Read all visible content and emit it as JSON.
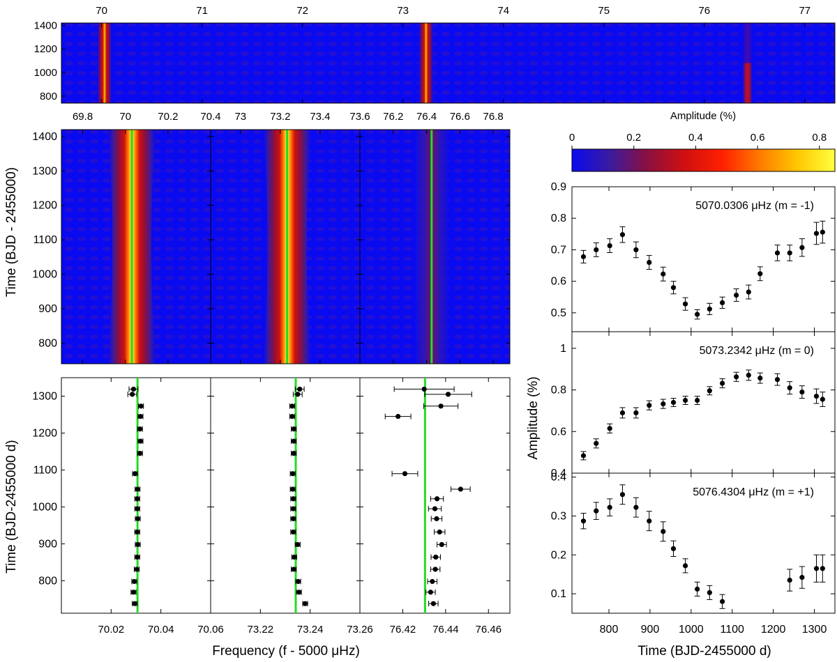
{
  "colors": {
    "background_blue": "#1010e8",
    "spectrum_ramp": [
      "#0a0af0",
      "#3a1aa0",
      "#8a1040",
      "#d01010",
      "#ff2000",
      "#ff7a00",
      "#ffc800",
      "#ffff40"
    ],
    "reference_line": "#22dd22",
    "points": "#000000"
  },
  "chart_data": [
    {
      "id": "top_strip",
      "type": "heatmap",
      "description_xlim": [
        69.6,
        77.3
      ],
      "x_ticks": [
        "70",
        "71",
        "72",
        "73",
        "74",
        "75",
        "76",
        "77"
      ],
      "x_tick_values": [
        70,
        71,
        72,
        73,
        74,
        75,
        76,
        77
      ],
      "y_ticks": [
        "1400",
        "1200",
        "1000",
        "800"
      ],
      "y_tick_values": [
        1400,
        1200,
        1000,
        800
      ],
      "ylim": [
        740,
        1420
      ],
      "peaks": [
        {
          "freq": 70.03,
          "amp_early": 0.7,
          "amp_late": 0.75
        },
        {
          "freq": 73.23,
          "amp_early": 0.7,
          "amp_late": 0.8
        },
        {
          "freq": 76.43,
          "amp_early": 0.3,
          "amp_late": 0.15
        }
      ]
    },
    {
      "id": "zoom_heatmaps",
      "type": "heatmap",
      "ylabel": "Time (BJD - 2455000)",
      "y_ticks": [
        "1400",
        "1300",
        "1200",
        "1100",
        "1000",
        "900",
        "800"
      ],
      "y_tick_values": [
        1400,
        1300,
        1200,
        1100,
        1000,
        900,
        800
      ],
      "ylim": [
        740,
        1420
      ],
      "panels": [
        {
          "xlim": [
            69.7,
            70.4
          ],
          "x_ticks": [
            "69.8",
            "70",
            "70.2",
            "70.4"
          ],
          "x_tick_values": [
            69.8,
            70.0,
            70.2,
            70.4
          ],
          "center": 70.0306
        },
        {
          "xlim": [
            72.85,
            73.6
          ],
          "x_ticks": [
            "73",
            "73.2",
            "73.4",
            "73.6"
          ],
          "x_tick_values": [
            73.0,
            73.2,
            73.4,
            73.6
          ],
          "center": 73.2342
        },
        {
          "xlim": [
            76.0,
            76.9
          ],
          "x_ticks": [
            "76.2",
            "76.4",
            "76.6",
            "76.8"
          ],
          "x_tick_values": [
            76.2,
            76.4,
            76.6,
            76.8
          ],
          "center": 76.4304
        }
      ]
    },
    {
      "id": "frequency_vs_time",
      "type": "scatter",
      "xlabel": "Frequency (f - 5000 μHz)",
      "ylabel": "Time (BJD-2455000 d)",
      "y_ticks": [
        "1300",
        "1200",
        "1100",
        "1000",
        "900",
        "800"
      ],
      "y_tick_values": [
        1300,
        1200,
        1100,
        1000,
        900,
        800
      ],
      "ylim": [
        712,
        1350
      ],
      "panels": [
        {
          "xlim": [
            70.0,
            70.06
          ],
          "x_ticks": [
            "70.02",
            "70.04"
          ],
          "x_tick_values": [
            70.02,
            70.04
          ],
          "edge_tick": "70.06",
          "ref": 70.0306,
          "series": [
            {
              "t": 1319,
              "f": 70.029,
              "e": 0.0018
            },
            {
              "t": 1305,
              "f": 70.0285,
              "e": 0.0018
            },
            {
              "t": 1273,
              "f": 70.032,
              "e": 0.001
            },
            {
              "t": 1245,
              "f": 70.0318,
              "e": 0.001
            },
            {
              "t": 1211,
              "f": 70.0316,
              "e": 0.001
            },
            {
              "t": 1178,
              "f": 70.0318,
              "e": 0.001
            },
            {
              "t": 1145,
              "f": 70.0316,
              "e": 0.001
            },
            {
              "t": 1090,
              "f": 70.0296,
              "e": 0.001
            },
            {
              "t": 1048,
              "f": 70.0306,
              "e": 0.001
            },
            {
              "t": 1022,
              "f": 70.0305,
              "e": 0.001
            },
            {
              "t": 995,
              "f": 70.0305,
              "e": 0.001
            },
            {
              "t": 968,
              "f": 70.0307,
              "e": 0.001
            },
            {
              "t": 932,
              "f": 70.0305,
              "e": 0.001
            },
            {
              "t": 898,
              "f": 70.0307,
              "e": 0.001
            },
            {
              "t": 864,
              "f": 70.0305,
              "e": 0.001
            },
            {
              "t": 831,
              "f": 70.0303,
              "e": 0.001
            },
            {
              "t": 798,
              "f": 70.0293,
              "e": 0.001
            },
            {
              "t": 769,
              "f": 70.029,
              "e": 0.001
            },
            {
              "t": 738,
              "f": 70.0295,
              "e": 0.001
            }
          ]
        },
        {
          "xlim": [
            73.2,
            73.26
          ],
          "x_ticks": [
            "73.22",
            "73.24",
            "73.26"
          ],
          "x_tick_values": [
            73.22,
            73.24,
            73.26
          ],
          "edge_tick": "",
          "ref": 73.2342,
          "series": [
            {
              "t": 1319,
              "f": 73.2358,
              "e": 0.0018
            },
            {
              "t": 1305,
              "f": 73.235,
              "e": 0.0018
            },
            {
              "t": 1273,
              "f": 73.2328,
              "e": 0.001
            },
            {
              "t": 1245,
              "f": 73.2328,
              "e": 0.001
            },
            {
              "t": 1211,
              "f": 73.2334,
              "e": 0.001
            },
            {
              "t": 1178,
              "f": 73.2334,
              "e": 0.001
            },
            {
              "t": 1145,
              "f": 73.2334,
              "e": 0.001
            },
            {
              "t": 1090,
              "f": 73.233,
              "e": 0.001
            },
            {
              "t": 1048,
              "f": 73.233,
              "e": 0.001
            },
            {
              "t": 1022,
              "f": 73.2332,
              "e": 0.001
            },
            {
              "t": 995,
              "f": 73.2332,
              "e": 0.001
            },
            {
              "t": 968,
              "f": 73.2332,
              "e": 0.001
            },
            {
              "t": 932,
              "f": 73.2332,
              "e": 0.001
            },
            {
              "t": 898,
              "f": 73.235,
              "e": 0.001
            },
            {
              "t": 864,
              "f": 73.2336,
              "e": 0.001
            },
            {
              "t": 831,
              "f": 73.2334,
              "e": 0.001
            },
            {
              "t": 798,
              "f": 73.2352,
              "e": 0.001
            },
            {
              "t": 769,
              "f": 73.2355,
              "e": 0.001
            },
            {
              "t": 738,
              "f": 73.238,
              "e": 0.001
            }
          ]
        },
        {
          "xlim": [
            76.4,
            76.47
          ],
          "x_ticks": [
            "76.42",
            "76.44",
            "76.46"
          ],
          "x_tick_values": [
            76.42,
            76.44,
            76.46
          ],
          "edge_tick": "",
          "ref": 76.4304,
          "series": [
            {
              "t": 1319,
              "f": 76.43,
              "e": 0.014
            },
            {
              "t": 1305,
              "f": 76.4412,
              "e": 0.011
            },
            {
              "t": 1273,
              "f": 76.4378,
              "e": 0.008
            },
            {
              "t": 1245,
              "f": 76.4178,
              "e": 0.006
            },
            {
              "t": 1090,
              "f": 76.421,
              "e": 0.006
            },
            {
              "t": 1048,
              "f": 76.447,
              "e": 0.0045
            },
            {
              "t": 1022,
              "f": 76.436,
              "e": 0.003
            },
            {
              "t": 995,
              "f": 76.435,
              "e": 0.003
            },
            {
              "t": 968,
              "f": 76.4358,
              "e": 0.0025
            },
            {
              "t": 932,
              "f": 76.4372,
              "e": 0.0025
            },
            {
              "t": 898,
              "f": 76.4382,
              "e": 0.0022
            },
            {
              "t": 864,
              "f": 76.4354,
              "e": 0.0022
            },
            {
              "t": 831,
              "f": 76.4352,
              "e": 0.0022
            },
            {
              "t": 798,
              "f": 76.4338,
              "e": 0.0022
            },
            {
              "t": 769,
              "f": 76.433,
              "e": 0.0022
            },
            {
              "t": 738,
              "f": 76.4343,
              "e": 0.0022
            }
          ]
        }
      ]
    },
    {
      "id": "colorbar",
      "type": "heatmap",
      "title": "Amplitude (%)",
      "range": [
        0,
        0.85
      ],
      "ticks": [
        "0",
        "0.2",
        "0.4",
        "0.6",
        "0.8"
      ],
      "tick_values": [
        0,
        0.2,
        0.4,
        0.6,
        0.8
      ]
    },
    {
      "id": "amplitude_vs_time",
      "type": "scatter",
      "xlabel": "Time (BJD-2455000 d)",
      "ylabel": "Amplitude (%)",
      "xlim": [
        710,
        1350
      ],
      "x_ticks": [
        "800",
        "900",
        "1000",
        "1100",
        "1200",
        "1300"
      ],
      "x_tick_values": [
        800,
        900,
        1000,
        1100,
        1200,
        1300
      ],
      "panels": [
        {
          "label": "5070.0306 μHz  (m = -1)",
          "ylim": [
            0.44,
            0.9
          ],
          "y_ticks": [
            "0.5",
            "0.6",
            "0.7",
            "0.8",
            "0.9"
          ],
          "y_tick_values": [
            0.5,
            0.6,
            0.7,
            0.8,
            0.9
          ],
          "series": [
            {
              "t": 738,
              "a": 0.678,
              "e": 0.02
            },
            {
              "t": 769,
              "a": 0.7,
              "e": 0.022
            },
            {
              "t": 802,
              "a": 0.713,
              "e": 0.022
            },
            {
              "t": 833,
              "a": 0.748,
              "e": 0.025
            },
            {
              "t": 866,
              "a": 0.7,
              "e": 0.025
            },
            {
              "t": 898,
              "a": 0.66,
              "e": 0.022
            },
            {
              "t": 932,
              "a": 0.623,
              "e": 0.022
            },
            {
              "t": 957,
              "a": 0.58,
              "e": 0.02
            },
            {
              "t": 986,
              "a": 0.528,
              "e": 0.02
            },
            {
              "t": 1015,
              "a": 0.495,
              "e": 0.015
            },
            {
              "t": 1045,
              "a": 0.512,
              "e": 0.018
            },
            {
              "t": 1076,
              "a": 0.532,
              "e": 0.018
            },
            {
              "t": 1110,
              "a": 0.556,
              "e": 0.02
            },
            {
              "t": 1140,
              "a": 0.566,
              "e": 0.022
            },
            {
              "t": 1168,
              "a": 0.624,
              "e": 0.022
            },
            {
              "t": 1210,
              "a": 0.69,
              "e": 0.025
            },
            {
              "t": 1240,
              "a": 0.69,
              "e": 0.025
            },
            {
              "t": 1270,
              "a": 0.707,
              "e": 0.028
            },
            {
              "t": 1305,
              "a": 0.752,
              "e": 0.035
            },
            {
              "t": 1320,
              "a": 0.756,
              "e": 0.035
            }
          ]
        },
        {
          "label": "5073.2342 μHz  (m = 0)",
          "ylim": [
            0.4,
            1.08
          ],
          "y_ticks": [
            "0.4",
            "0.6",
            "0.8",
            "1"
          ],
          "y_tick_values": [
            0.4,
            0.6,
            0.8,
            1.0
          ],
          "series": [
            {
              "t": 738,
              "a": 0.484,
              "e": 0.02
            },
            {
              "t": 769,
              "a": 0.543,
              "e": 0.022
            },
            {
              "t": 802,
              "a": 0.615,
              "e": 0.022
            },
            {
              "t": 833,
              "a": 0.69,
              "e": 0.025
            },
            {
              "t": 866,
              "a": 0.69,
              "e": 0.025
            },
            {
              "t": 898,
              "a": 0.726,
              "e": 0.022
            },
            {
              "t": 932,
              "a": 0.733,
              "e": 0.022
            },
            {
              "t": 957,
              "a": 0.74,
              "e": 0.02
            },
            {
              "t": 986,
              "a": 0.75,
              "e": 0.02
            },
            {
              "t": 1015,
              "a": 0.75,
              "e": 0.02
            },
            {
              "t": 1045,
              "a": 0.796,
              "e": 0.02
            },
            {
              "t": 1076,
              "a": 0.832,
              "e": 0.022
            },
            {
              "t": 1110,
              "a": 0.863,
              "e": 0.022
            },
            {
              "t": 1140,
              "a": 0.871,
              "e": 0.025
            },
            {
              "t": 1168,
              "a": 0.857,
              "e": 0.025
            },
            {
              "t": 1210,
              "a": 0.85,
              "e": 0.028
            },
            {
              "t": 1240,
              "a": 0.81,
              "e": 0.03
            },
            {
              "t": 1270,
              "a": 0.79,
              "e": 0.03
            },
            {
              "t": 1305,
              "a": 0.77,
              "e": 0.035
            },
            {
              "t": 1320,
              "a": 0.755,
              "e": 0.035
            }
          ]
        },
        {
          "label": "5076.4304 μHz  (m = +1)",
          "ylim": [
            0.05,
            0.41
          ],
          "y_ticks": [
            "0.1",
            "0.2",
            "0.3",
            "0.4"
          ],
          "y_tick_values": [
            0.1,
            0.2,
            0.3,
            0.4
          ],
          "series": [
            {
              "t": 738,
              "a": 0.287,
              "e": 0.02
            },
            {
              "t": 769,
              "a": 0.313,
              "e": 0.022
            },
            {
              "t": 802,
              "a": 0.322,
              "e": 0.022
            },
            {
              "t": 833,
              "a": 0.355,
              "e": 0.025
            },
            {
              "t": 866,
              "a": 0.322,
              "e": 0.025
            },
            {
              "t": 898,
              "a": 0.287,
              "e": 0.025
            },
            {
              "t": 932,
              "a": 0.26,
              "e": 0.025
            },
            {
              "t": 957,
              "a": 0.216,
              "e": 0.02
            },
            {
              "t": 986,
              "a": 0.172,
              "e": 0.018
            },
            {
              "t": 1015,
              "a": 0.112,
              "e": 0.018
            },
            {
              "t": 1045,
              "a": 0.103,
              "e": 0.018
            },
            {
              "t": 1076,
              "a": 0.08,
              "e": 0.018
            },
            {
              "t": 1240,
              "a": 0.135,
              "e": 0.028
            },
            {
              "t": 1270,
              "a": 0.142,
              "e": 0.028
            },
            {
              "t": 1305,
              "a": 0.165,
              "e": 0.035
            },
            {
              "t": 1320,
              "a": 0.165,
              "e": 0.035
            }
          ]
        }
      ]
    }
  ]
}
